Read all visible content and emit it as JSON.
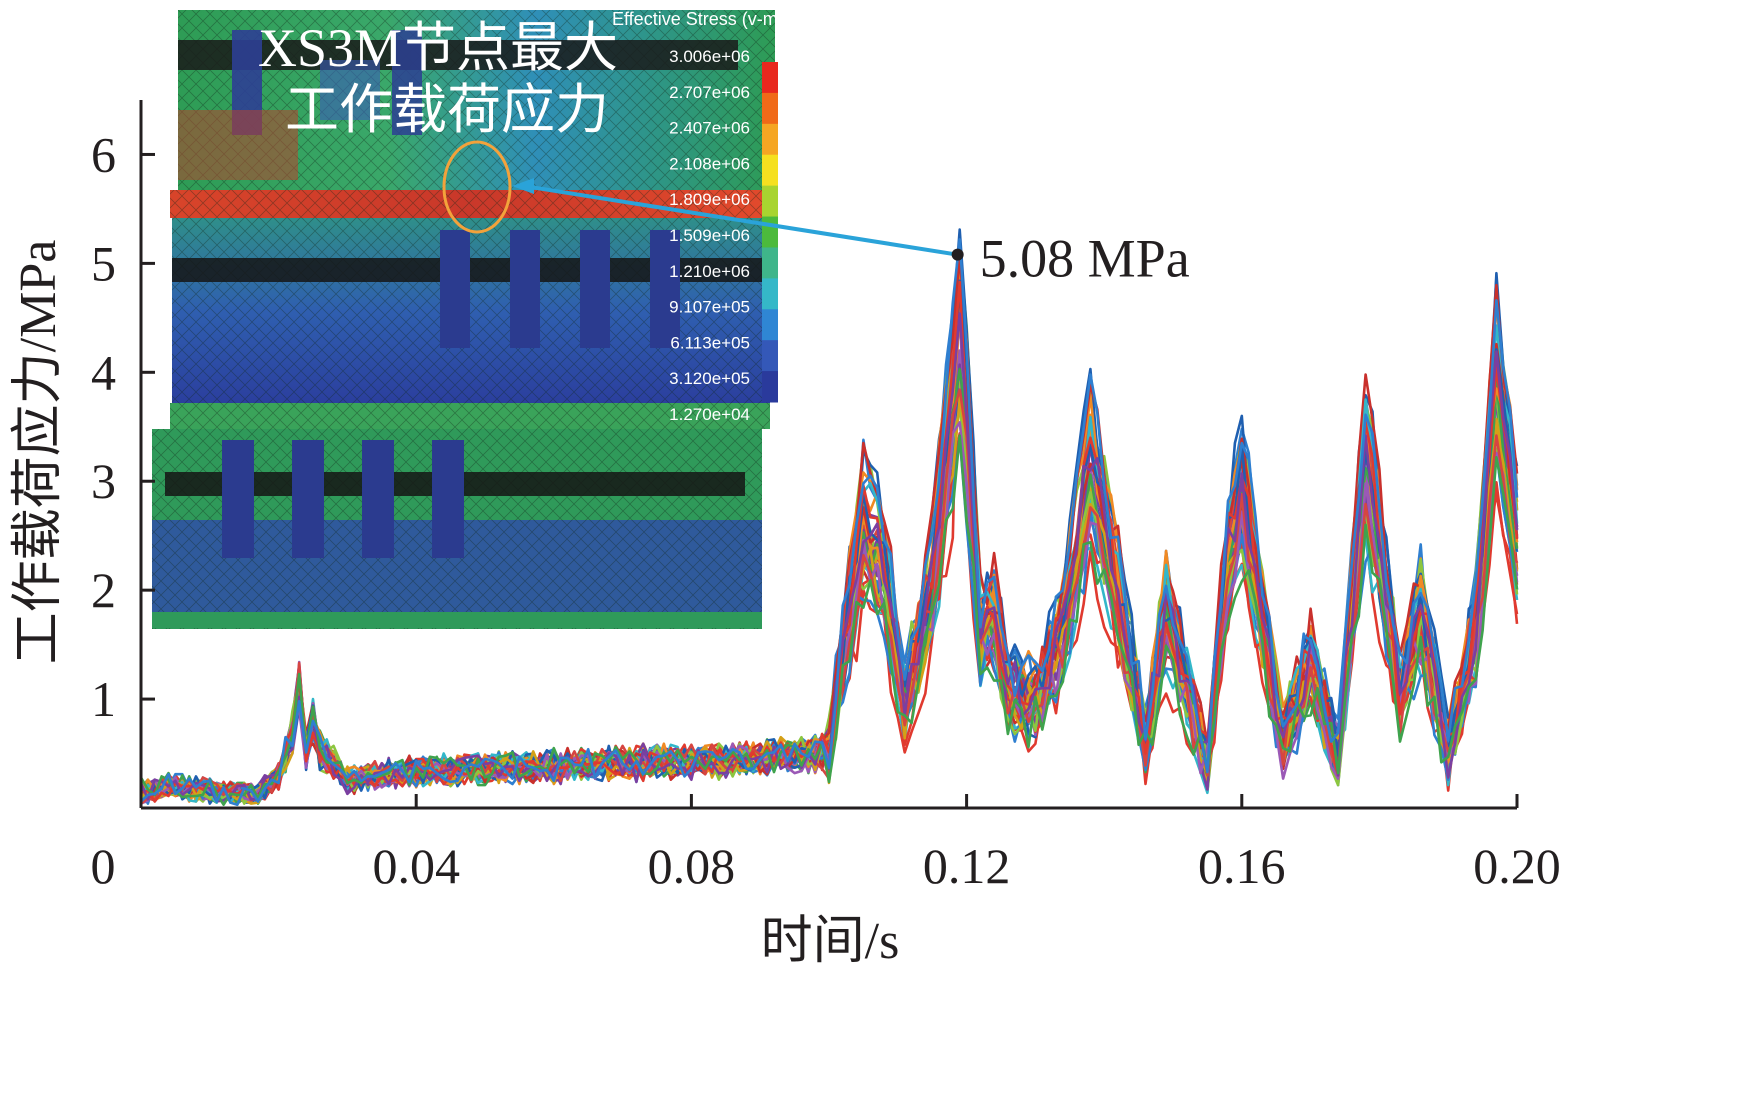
{
  "chart_data": {
    "type": "line",
    "xlabel": "时间/s",
    "ylabel": "工作载荷应力/MPa",
    "xlim": [
      0,
      0.2
    ],
    "ylim": [
      0,
      6.5
    ],
    "xticks": [
      0,
      0.04,
      0.08,
      0.12,
      0.16,
      0.2
    ],
    "xtick_labels": [
      "0",
      "0.04",
      "0.08",
      "0.12",
      "0.16",
      "0.20"
    ],
    "yticks": [
      1,
      2,
      3,
      4,
      5,
      6
    ],
    "ytick_labels": [
      "1",
      "2",
      "3",
      "4",
      "5",
      "6"
    ],
    "grid": false,
    "series_count": 40,
    "envelope": {
      "x": [
        0,
        0.004,
        0.01,
        0.017,
        0.02,
        0.022,
        0.023,
        0.024,
        0.025,
        0.026,
        0.028,
        0.03,
        0.035,
        0.04,
        0.05,
        0.06,
        0.07,
        0.08,
        0.09,
        0.1,
        0.102,
        0.105,
        0.108,
        0.111,
        0.113,
        0.115,
        0.118,
        0.119,
        0.12,
        0.122,
        0.124,
        0.126,
        0.13,
        0.134,
        0.138,
        0.14,
        0.143,
        0.146,
        0.149,
        0.152,
        0.155,
        0.158,
        0.16,
        0.163,
        0.166,
        0.17,
        0.174,
        0.178,
        0.18,
        0.183,
        0.186,
        0.19,
        0.194,
        0.197,
        0.2
      ],
      "mean": [
        0.15,
        0.2,
        0.15,
        0.12,
        0.3,
        0.7,
        1.1,
        0.5,
        0.8,
        0.5,
        0.4,
        0.25,
        0.3,
        0.33,
        0.35,
        0.38,
        0.4,
        0.42,
        0.45,
        0.5,
        1.4,
        2.6,
        2.2,
        1.0,
        1.5,
        2.1,
        3.7,
        4.3,
        3.6,
        1.6,
        1.8,
        1.1,
        1.0,
        1.6,
        3.2,
        2.6,
        1.6,
        0.6,
        1.8,
        1.1,
        0.4,
        2.3,
        2.9,
        1.7,
        0.6,
        1.3,
        0.5,
        3.2,
        2.4,
        1.0,
        1.8,
        0.5,
        1.6,
        3.9,
        2.5
      ]
    },
    "series": []
  },
  "annotation": {
    "label": "5.08 MPa",
    "x": 0.1187,
    "y": 5.08
  },
  "inset": {
    "title_line1": "XS3M节点最大",
    "title_line2": "工作载荷应力",
    "legend_title": "Effective Stress (v-m)",
    "legend_values": [
      "3.006e+06",
      "2.707e+06",
      "2.407e+06",
      "2.108e+06",
      "1.809e+06",
      "1.509e+06",
      "1.210e+06",
      "9.107e+05",
      "6.113e+05",
      "3.120e+05",
      "1.270e+04"
    ],
    "legend_colors": [
      "#e8281e",
      "#f06a18",
      "#f5a623",
      "#f5e020",
      "#a8d430",
      "#4cba3c",
      "#3fb58a",
      "#35b8c8",
      "#2f86d4",
      "#3458b8",
      "#2a3a9c"
    ]
  },
  "colors": {
    "axis": "#231f20",
    "annotation_arrow": "#2aa3d9",
    "circle": "#f3a23b",
    "series_palette": [
      "#e03a2f",
      "#7b3fa0",
      "#3fa34d",
      "#2f7fd0",
      "#f08a24",
      "#33b7c9",
      "#c9302c",
      "#8cc63f",
      "#1f5fb0",
      "#d4a017",
      "#9b59b6",
      "#d64541"
    ]
  }
}
